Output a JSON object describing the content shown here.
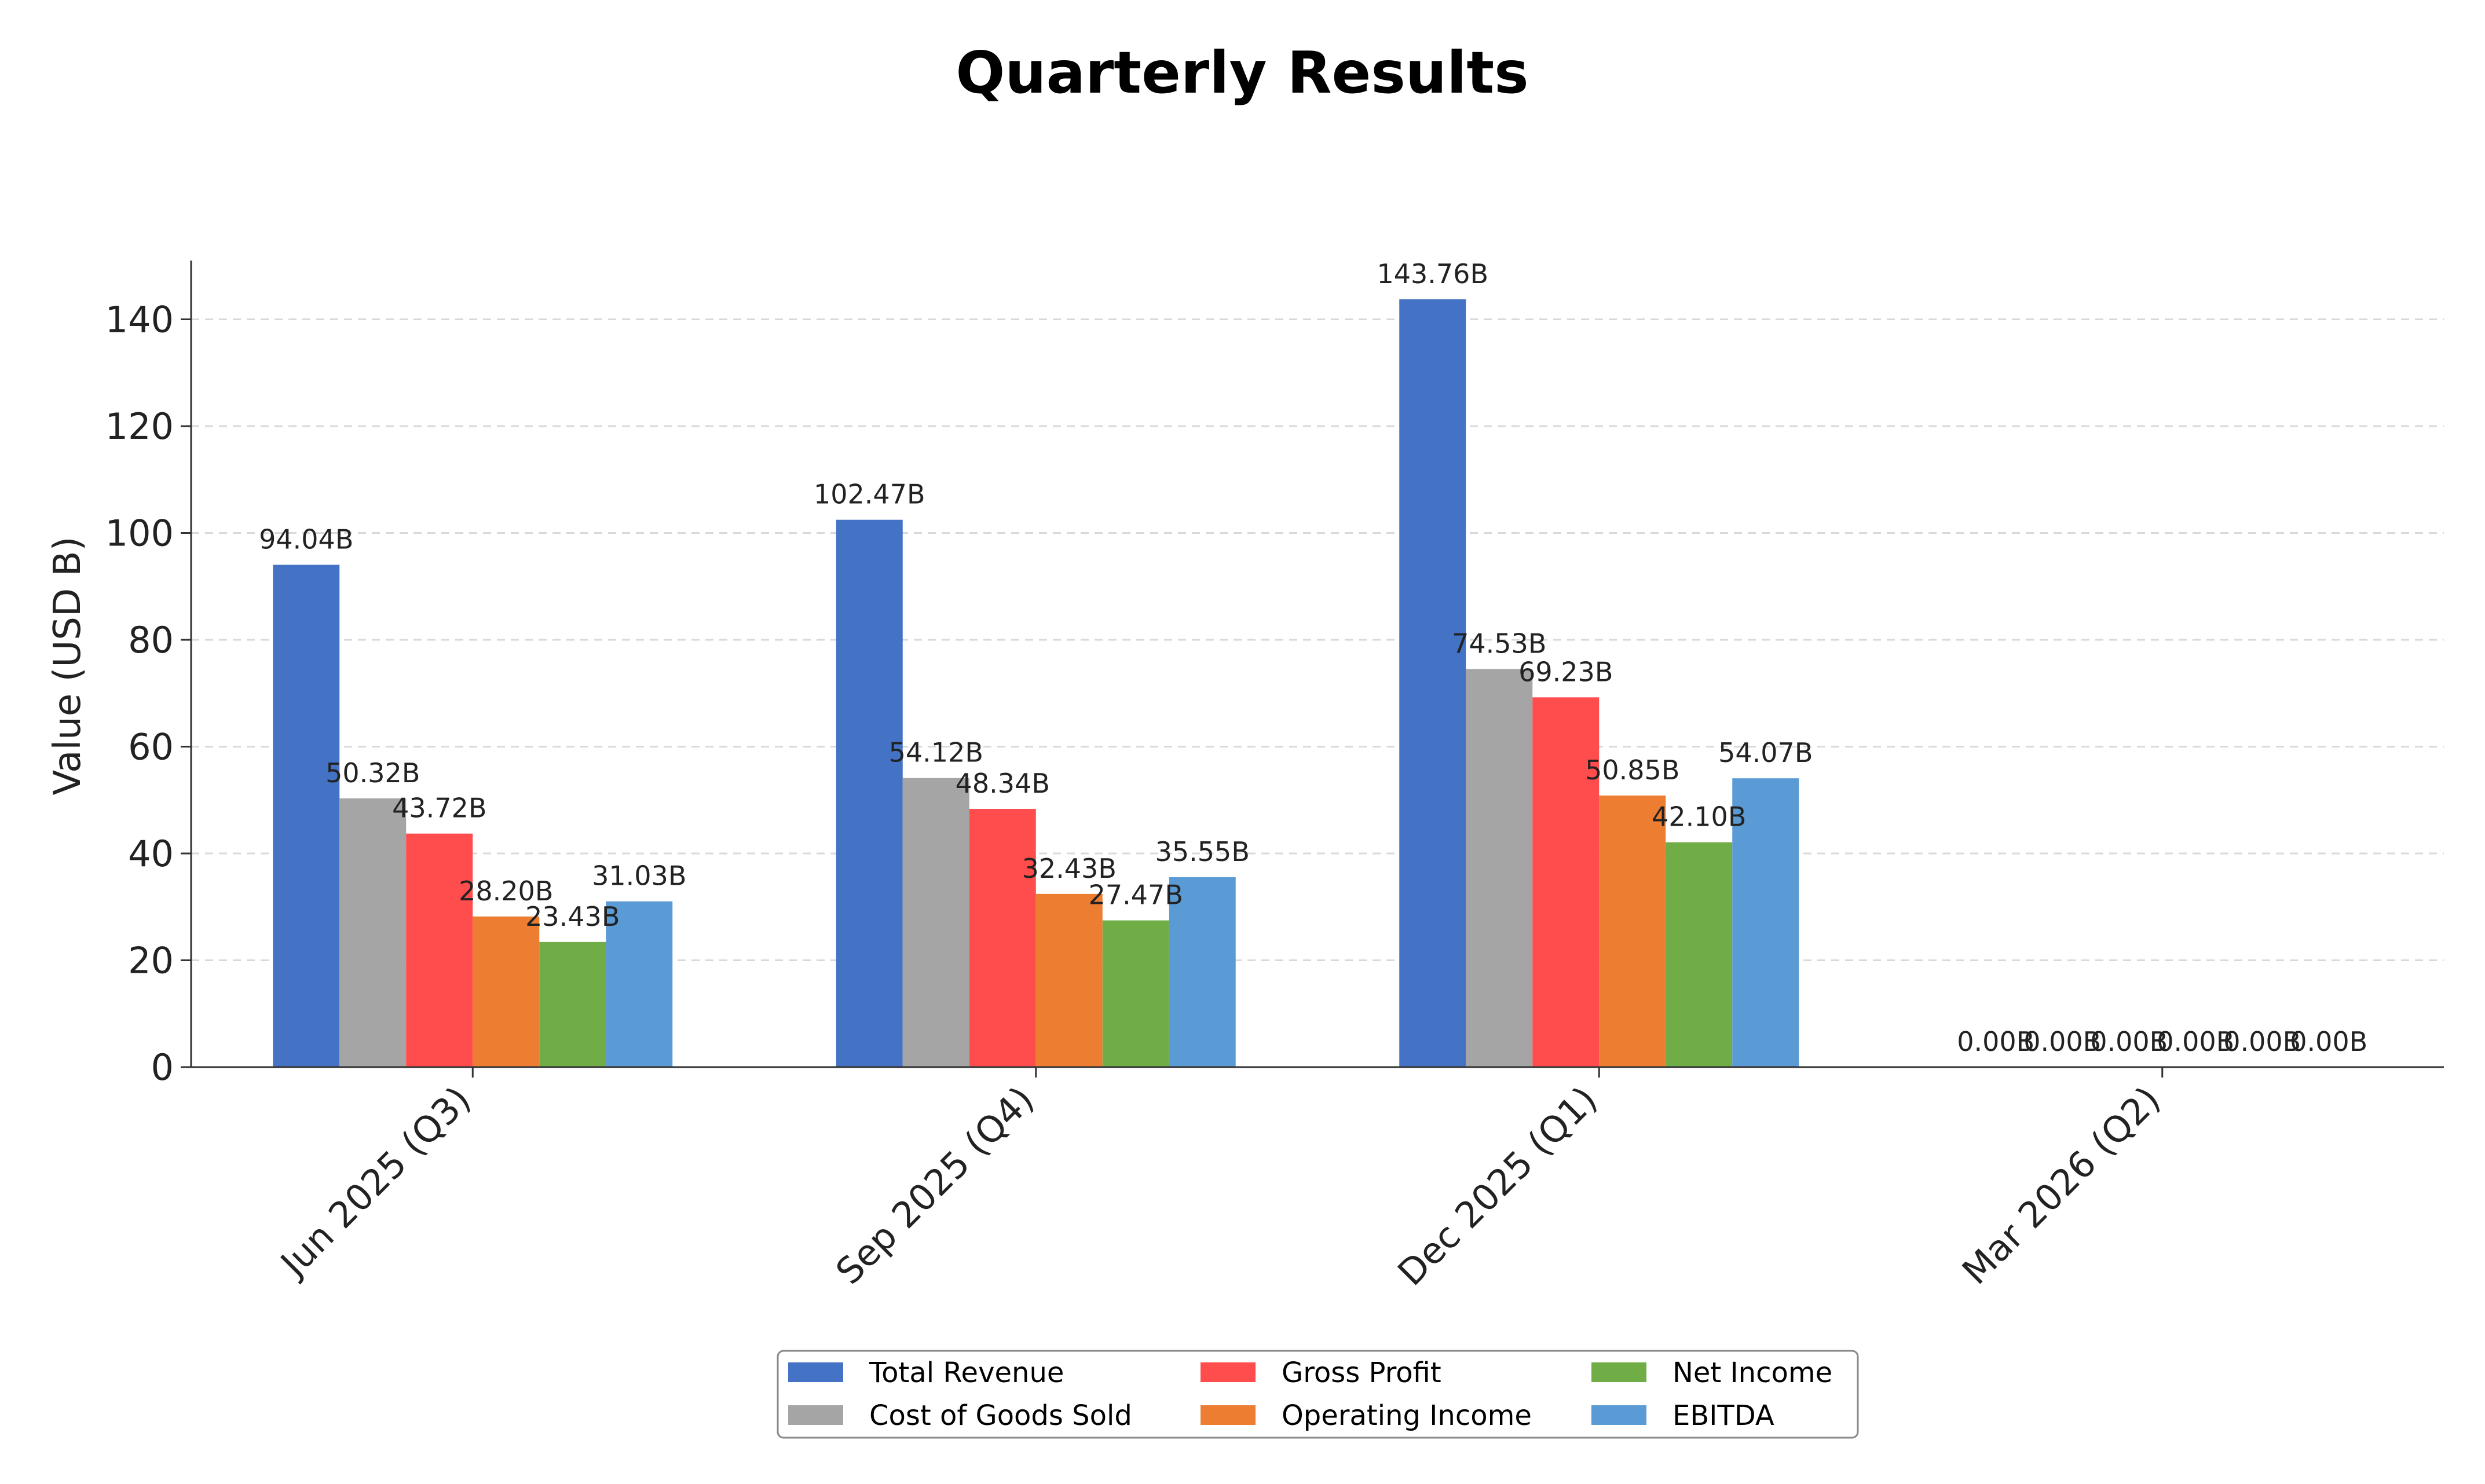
{
  "chart_data": {
    "type": "bar",
    "title": "Quarterly Results",
    "xlabel": "",
    "ylabel": "Value (USD B)",
    "ylim": [
      0,
      151
    ],
    "yticks": [
      0,
      20,
      40,
      60,
      80,
      100,
      120,
      140
    ],
    "grid": "y-dashed",
    "legend_position": "bottom-center",
    "value_suffix": "B",
    "categories": [
      "Jun 2025 (Q3)",
      "Sep 2025 (Q4)",
      "Dec 2025 (Q1)",
      "Mar 2026 (Q2)"
    ],
    "series": [
      {
        "name": "Total Revenue",
        "color": "#4472c4",
        "values": [
          94.04,
          102.47,
          143.76,
          0.0
        ]
      },
      {
        "name": "Cost of Goods Sold",
        "color": "#a5a5a5",
        "values": [
          50.32,
          54.12,
          74.53,
          0.0
        ]
      },
      {
        "name": "Gross Profit",
        "color": "#ff4c4c",
        "values": [
          43.72,
          48.34,
          69.23,
          0.0
        ]
      },
      {
        "name": "Operating Income",
        "color": "#ed7d31",
        "values": [
          28.2,
          32.43,
          50.85,
          0.0
        ]
      },
      {
        "name": "Net Income",
        "color": "#70ad47",
        "values": [
          23.43,
          27.47,
          42.1,
          0.0
        ]
      },
      {
        "name": "EBITDA",
        "color": "#5b9bd5",
        "values": [
          31.03,
          35.55,
          54.07,
          0.0
        ]
      }
    ]
  }
}
